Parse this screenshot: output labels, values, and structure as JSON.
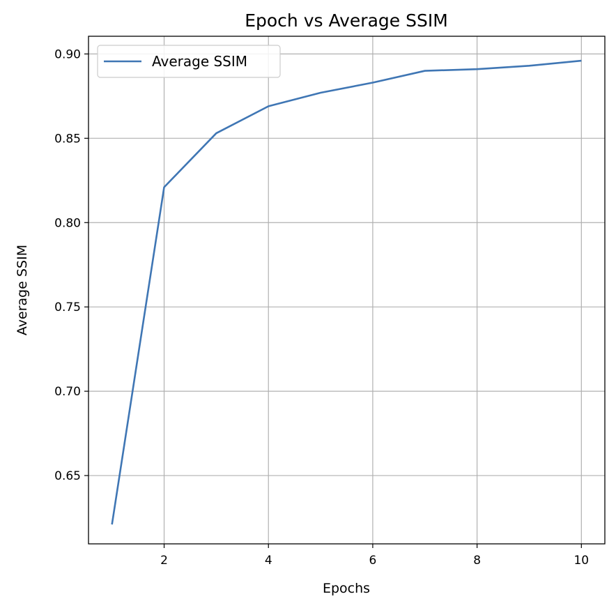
{
  "chart_data": {
    "type": "line",
    "title": "Epoch vs Average SSIM",
    "xlabel": "Epochs",
    "ylabel": "Average SSIM",
    "xlim": [
      0.55,
      10.45
    ],
    "ylim": [
      0.6095,
      0.9105
    ],
    "xticks": [
      2,
      4,
      6,
      8,
      10
    ],
    "xtick_labels": [
      "2",
      "4",
      "6",
      "8",
      "10"
    ],
    "yticks": [
      0.65,
      0.7,
      0.75,
      0.8,
      0.85,
      0.9
    ],
    "ytick_labels": [
      "0.65",
      "0.70",
      "0.75",
      "0.80",
      "0.85",
      "0.90"
    ],
    "grid": true,
    "legend_position": "top-left",
    "series": [
      {
        "name": "Average SSIM",
        "color": "#3f76b4",
        "x": [
          1,
          2,
          3,
          4,
          5,
          6,
          7,
          8,
          9,
          10
        ],
        "y": [
          0.621,
          0.821,
          0.853,
          0.869,
          0.877,
          0.883,
          0.89,
          0.891,
          0.893,
          0.896
        ]
      }
    ]
  }
}
